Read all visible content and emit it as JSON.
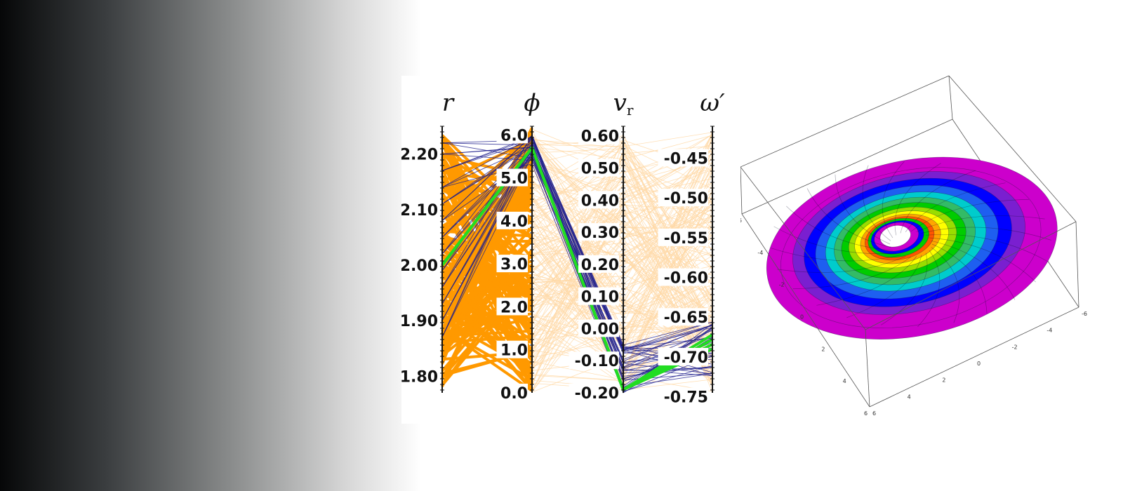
{
  "chart_data": [
    {
      "type": "parallel_coordinates",
      "axes": [
        {
          "label": "r",
          "ticks": [
            "1.80",
            "1.90",
            "2.00",
            "2.10",
            "2.20"
          ],
          "range": [
            1.77,
            2.25
          ]
        },
        {
          "label": "ϕ",
          "ticks": [
            "0.0",
            "1.0",
            "2.0",
            "3.0",
            "4.0",
            "5.0",
            "6.0"
          ],
          "range": [
            0.0,
            6.2
          ]
        },
        {
          "label": "v",
          "label_sub": "r",
          "ticks": [
            "-0.20",
            "-0.10",
            "0.00",
            "0.10",
            "0.20",
            "0.30",
            "0.40",
            "0.50",
            "0.60"
          ],
          "range": [
            -0.2,
            0.63
          ]
        },
        {
          "label": "ω′",
          "ticks": [
            "-0.75",
            "-0.70",
            "-0.65",
            "-0.60",
            "-0.55",
            "-0.50",
            "-0.45"
          ],
          "range": [
            -0.745,
            -0.41
          ]
        }
      ],
      "series": [
        {
          "color": "#ff9900",
          "r_range": [
            1.78,
            2.24
          ],
          "phi_range": [
            0.0,
            6.2
          ]
        },
        {
          "color": "#ffd9a8",
          "phi_range": [
            0.0,
            6.2
          ],
          "vr_range": [
            -0.2,
            0.62
          ],
          "omega_range": [
            -0.745,
            -0.415
          ]
        },
        {
          "color": "#1e1e8c",
          "r_values": [
            1.87,
            1.9,
            1.93,
            1.96,
            1.99,
            2.02,
            2.05,
            2.08,
            2.11,
            2.14,
            2.17,
            2.2,
            2.22
          ],
          "phi_range": [
            5.3,
            6.0
          ],
          "vr_range": [
            -0.2,
            -0.05
          ],
          "omega_range": [
            -0.725,
            -0.655
          ]
        },
        {
          "color": "#22dd22",
          "r": 2.0,
          "phi": 5.7,
          "vr": -0.19,
          "omega_range": [
            -0.69,
            -0.672
          ]
        }
      ]
    },
    {
      "type": "3d_surface",
      "x_ticks": [
        "6",
        "4",
        "2",
        "0",
        "-2",
        "-4",
        "-6"
      ],
      "y_ticks": [
        "-6",
        "-4",
        "-2",
        "0",
        "2",
        "4",
        "6"
      ],
      "colormap": [
        "#ff0000",
        "#ffa500",
        "#ffff00",
        "#00cc00",
        "#00cccc",
        "#0000ff",
        "#cc00cc"
      ]
    }
  ]
}
